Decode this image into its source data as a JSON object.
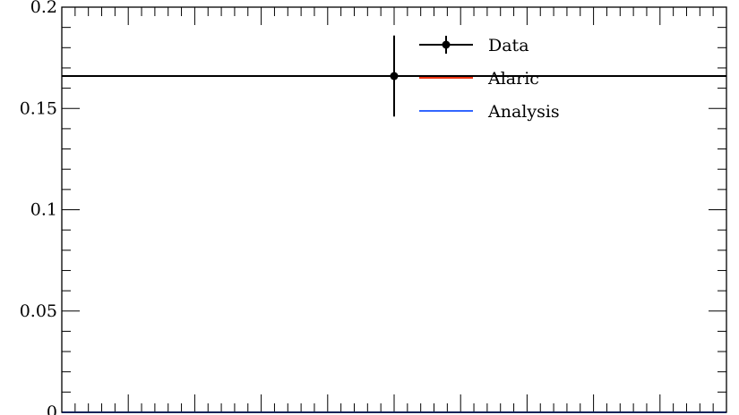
{
  "chart_data": {
    "type": "line",
    "title": "",
    "xlabel": "",
    "ylabel": "",
    "xlim": [
      0,
      1
    ],
    "ylim": [
      0,
      0.2
    ],
    "yticks": [
      0,
      0.05,
      0.1,
      0.15,
      0.2
    ],
    "ytick_labels": [
      "0",
      "0.05",
      "0.1",
      "0.15",
      "0.2"
    ],
    "legend_position": "top-right",
    "series": [
      {
        "name": "Data",
        "kind": "errorbar",
        "color": "#000000",
        "x": [
          0.5
        ],
        "y": [
          0.166
        ],
        "yerr_low": [
          0.02
        ],
        "yerr_high": [
          0.02
        ],
        "hline": 0.166
      },
      {
        "name": "Alaric",
        "kind": "line",
        "color": "#ee3311",
        "x": [
          0,
          1
        ],
        "y": [
          0,
          0
        ]
      },
      {
        "name": "Analysis",
        "kind": "line",
        "color": "#3366ff",
        "x": [
          0,
          1
        ],
        "y": [
          0,
          0
        ]
      }
    ]
  }
}
